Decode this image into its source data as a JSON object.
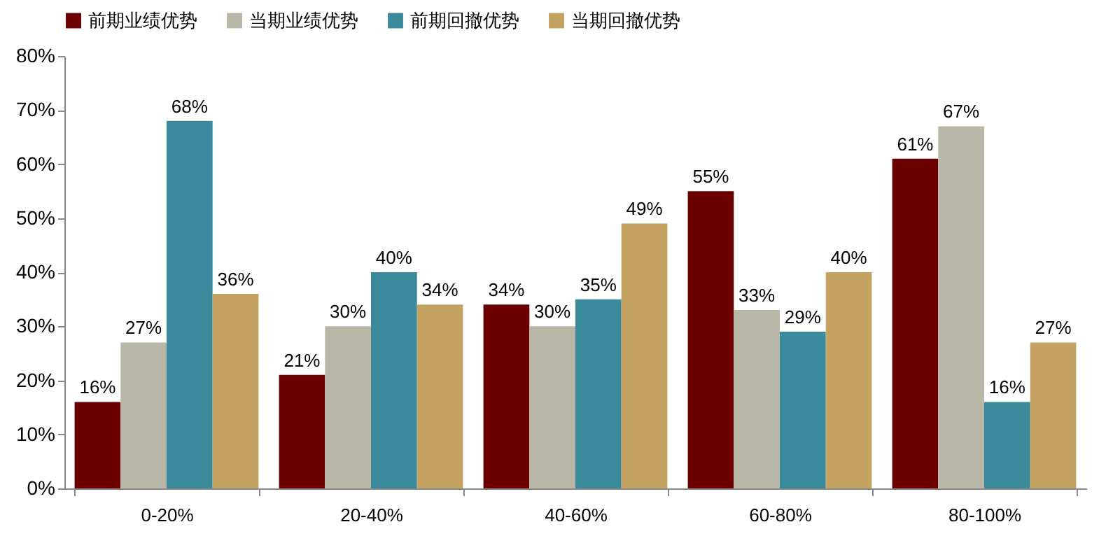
{
  "chart_data": {
    "type": "bar",
    "categories": [
      "0-20%",
      "20-40%",
      "40-60%",
      "60-80%",
      "80-100%"
    ],
    "series": [
      {
        "name": "前期业绩优势",
        "color": "#6b0000",
        "values": [
          16,
          21,
          34,
          55,
          61
        ],
        "value_labels": [
          "16%",
          "21%",
          "34%",
          "55%",
          "61%"
        ]
      },
      {
        "name": "当期业绩优势",
        "color": "#b9b7a7",
        "values": [
          27,
          30,
          30,
          33,
          67
        ],
        "value_labels": [
          "27%",
          "30%",
          "30%",
          "33%",
          "67%"
        ]
      },
      {
        "name": "前期回撤优势",
        "color": "#3b8a9c",
        "values": [
          68,
          40,
          35,
          29,
          16
        ],
        "value_labels": [
          "68%",
          "40%",
          "35%",
          "29%",
          "16%"
        ]
      },
      {
        "name": "当期回撤优势",
        "color": "#c4a262",
        "values": [
          36,
          34,
          49,
          40,
          27
        ],
        "value_labels": [
          "36%",
          "34%",
          "49%",
          "40%",
          "27%"
        ]
      }
    ],
    "ylim": [
      0,
      80
    ],
    "yticks": [
      {
        "value": 0,
        "label": "0%"
      },
      {
        "value": 10,
        "label": "10%"
      },
      {
        "value": 20,
        "label": "20%"
      },
      {
        "value": 30,
        "label": "30%"
      },
      {
        "value": 40,
        "label": "40%"
      },
      {
        "value": 50,
        "label": "50%"
      },
      {
        "value": 60,
        "label": "60%"
      },
      {
        "value": 70,
        "label": "70%"
      },
      {
        "value": 80,
        "label": "80%"
      }
    ],
    "grid": false,
    "legend": "top"
  }
}
